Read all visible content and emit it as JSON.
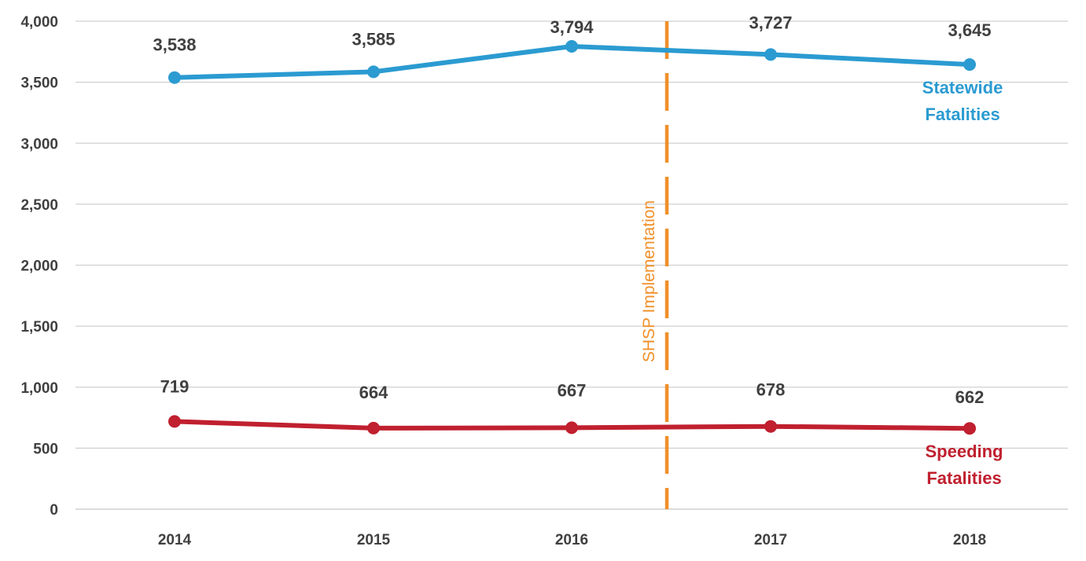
{
  "chart_data": {
    "type": "line",
    "categories": [
      "2014",
      "2015",
      "2016",
      "2017",
      "2018"
    ],
    "ylim": [
      0,
      4000
    ],
    "y_ticks": [
      "0",
      "500",
      "1,000",
      "1,500",
      "2,000",
      "2,500",
      "3,000",
      "3,500",
      "4,000"
    ],
    "grid": true,
    "series": [
      {
        "name_lines": [
          "Statewide",
          "Fatalities"
        ],
        "color": "#2b9bd1",
        "values": [
          3538,
          3585,
          3794,
          3727,
          3645
        ],
        "labels": [
          "3,538",
          "3,585",
          "3,794",
          "3,727",
          "3,645"
        ]
      },
      {
        "name_lines": [
          "Speeding",
          "Fatalities"
        ],
        "color": "#c0202f",
        "values": [
          719,
          664,
          667,
          678,
          662
        ],
        "labels": [
          "719",
          "664",
          "667",
          "678",
          "662"
        ]
      }
    ],
    "annotation": {
      "text": "SHSP Implementation",
      "color": "#f0902a",
      "x_position": "between 2016 and 2017"
    }
  }
}
